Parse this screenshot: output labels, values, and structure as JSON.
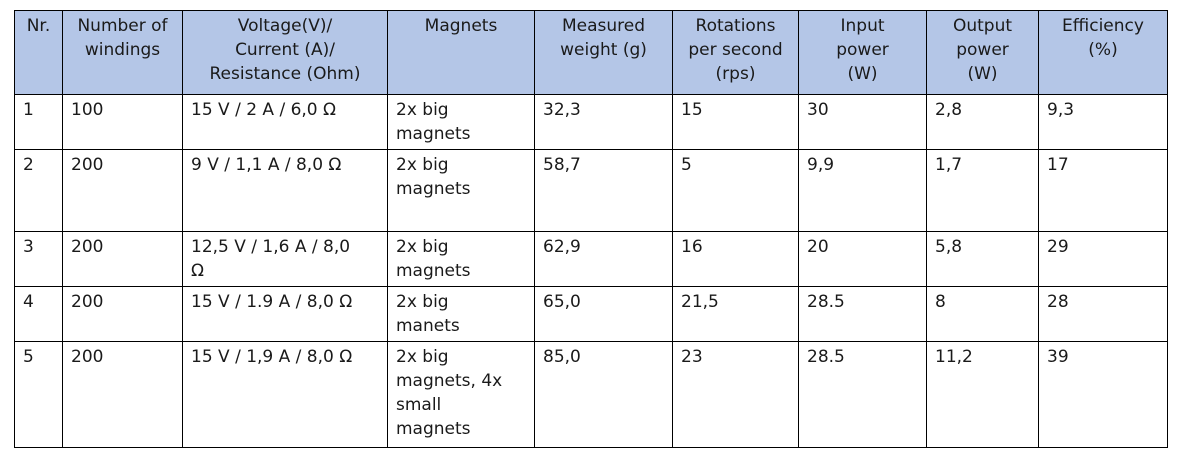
{
  "table": {
    "headers": [
      "Nr.",
      "Number of\nwindings",
      "Voltage(V)/\nCurrent (A)/\nResistance (Ohm)",
      "Magnets",
      "Measured\nweight (g)",
      "Rotations\nper second\n(rps)",
      "Input\npower\n(W)",
      "Output\npower\n(W)",
      "Efficiency\n(%)"
    ],
    "rows": [
      [
        "1",
        "100",
        "15 V / 2 A / 6,0 Ω",
        "2x big\nmagnets",
        "32,3",
        "15",
        "30",
        "2,8",
        "9,3"
      ],
      [
        "2",
        "200",
        "9 V / 1,1 A / 8,0 Ω",
        "2x big\nmagnets",
        "58,7",
        "5",
        "9,9",
        "1,7",
        "17"
      ],
      [
        "3",
        "200",
        "12,5 V / 1,6 A / 8,0\nΩ",
        "2x big\nmagnets",
        "62,9",
        "16",
        "20",
        "5,8",
        "29"
      ],
      [
        "4",
        "200",
        "15 V / 1.9 A / 8,0 Ω",
        "2x big\nmanets",
        "65,0",
        "21,5",
        "28.5",
        "8",
        "28"
      ],
      [
        "5",
        "200",
        "15 V / 1,9 A / 8,0 Ω",
        "2x big\nmagnets, 4x\nsmall\nmagnets",
        "85,0",
        "23",
        "28.5",
        "11,2",
        "39"
      ]
    ]
  }
}
